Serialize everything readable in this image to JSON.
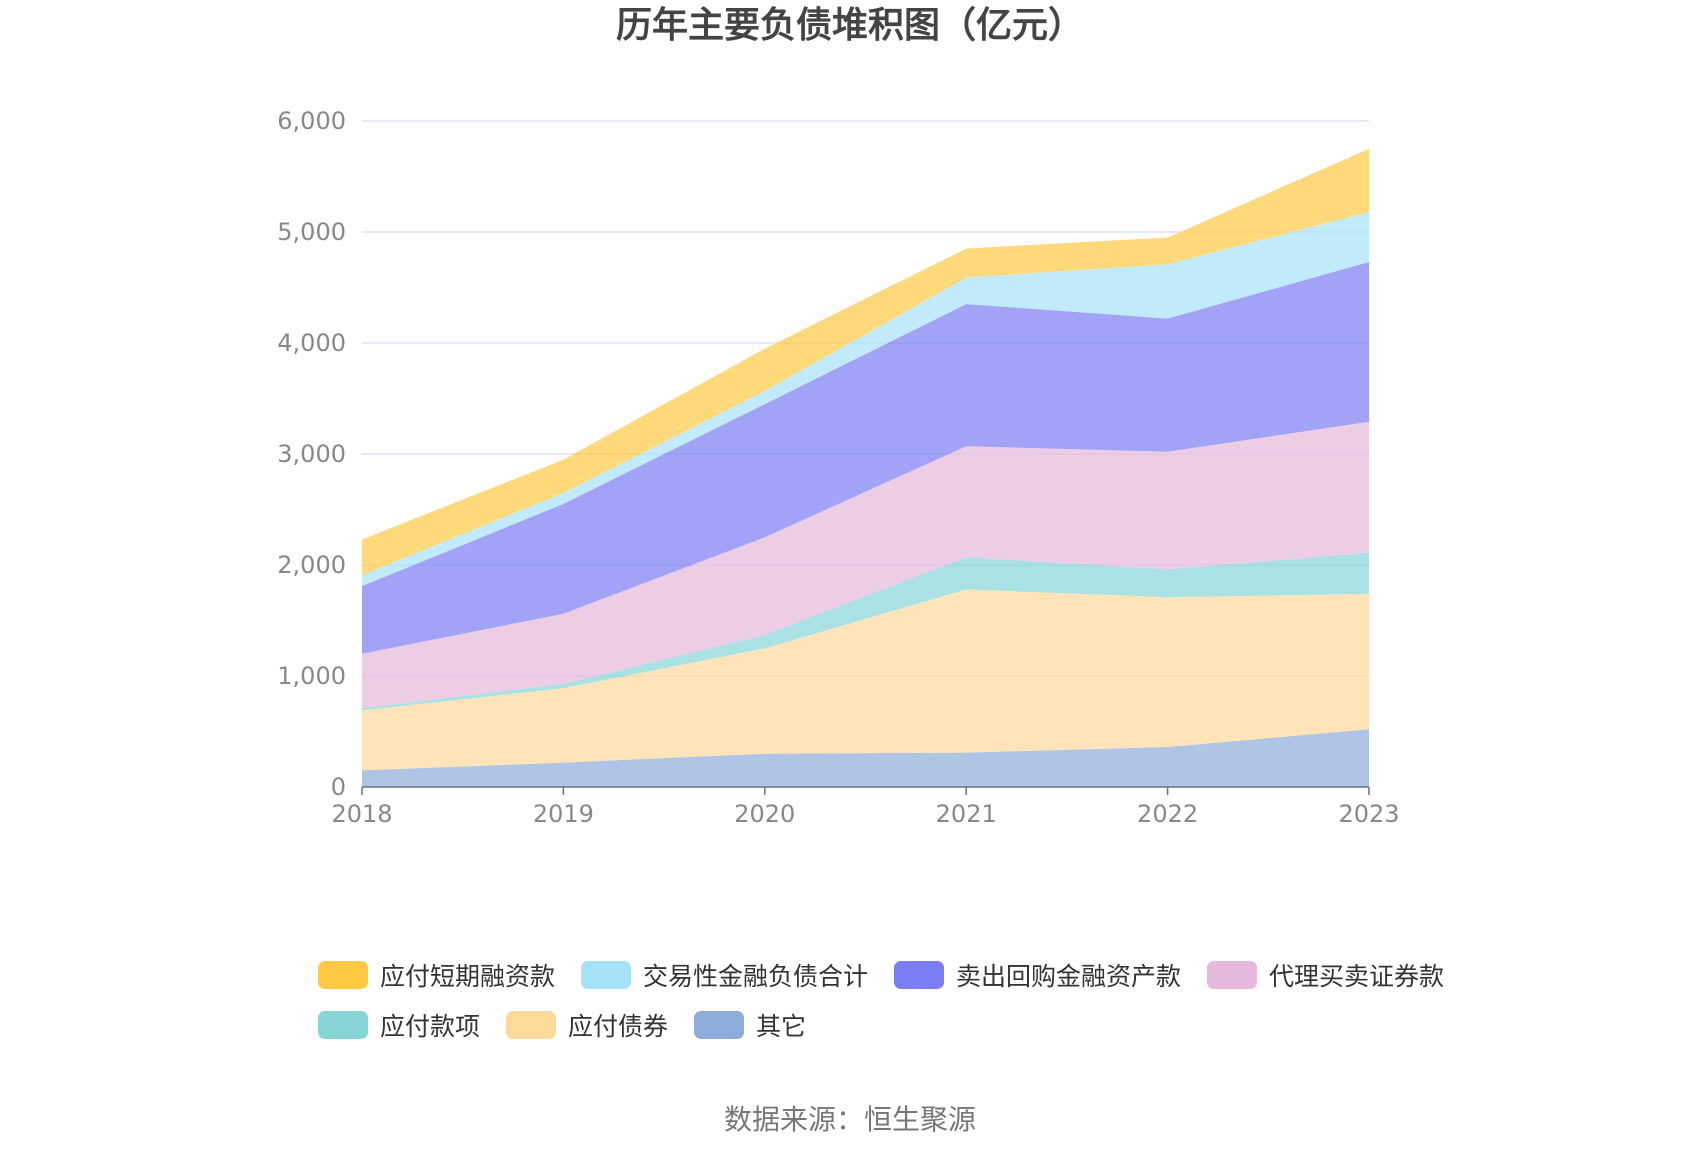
{
  "chart_data": {
    "type": "area",
    "stacked": true,
    "title": "历年主要负债堆积图（亿元）",
    "x": [
      "2018",
      "2019",
      "2020",
      "2021",
      "2022",
      "2023"
    ],
    "y_ticks": [
      "0",
      "1,000",
      "2,000",
      "3,000",
      "4,000",
      "5,000",
      "6,000"
    ],
    "ylim": [
      0,
      6000
    ],
    "grid": true,
    "legend_position": "bottom",
    "series": [
      {
        "name": "其它",
        "color": "#8eadda",
        "values": [
          150,
          220,
          300,
          310,
          360,
          520
        ]
      },
      {
        "name": "应付债券",
        "color": "#fdd99a",
        "values": [
          540,
          670,
          950,
          1470,
          1350,
          1220
        ]
      },
      {
        "name": "应付款项",
        "color": "#86d4d6",
        "values": [
          20,
          40,
          120,
          290,
          250,
          370
        ]
      },
      {
        "name": "代理买卖证券款",
        "color": "#e6b8dc",
        "values": [
          490,
          630,
          880,
          1000,
          1060,
          1180
        ]
      },
      {
        "name": "卖出回购金融资产款",
        "color": "#7b7cf2",
        "values": [
          610,
          990,
          1200,
          1280,
          1200,
          1440
        ]
      },
      {
        "name": "交易性金融负债合计",
        "color": "#a6e1f8",
        "values": [
          100,
          100,
          120,
          240,
          490,
          450
        ]
      },
      {
        "name": "应付短期融资款",
        "color": "#ffc942",
        "values": [
          320,
          300,
          380,
          260,
          240,
          570
        ]
      }
    ]
  },
  "legend": {
    "rows": [
      [
        {
          "label": "应付短期融资款",
          "color": "#ffc942"
        },
        {
          "label": "交易性金融负债合计",
          "color": "#a6e1f8"
        },
        {
          "label": "卖出回购金融资产款",
          "color": "#7b7cf2"
        },
        {
          "label": "代理买卖证券款",
          "color": "#e6b8dc"
        }
      ],
      [
        {
          "label": "应付款项",
          "color": "#86d4d6"
        },
        {
          "label": "应付债券",
          "color": "#fdd99a"
        },
        {
          "label": "其它",
          "color": "#8eadda"
        }
      ]
    ]
  },
  "source": "数据来源：恒生聚源"
}
